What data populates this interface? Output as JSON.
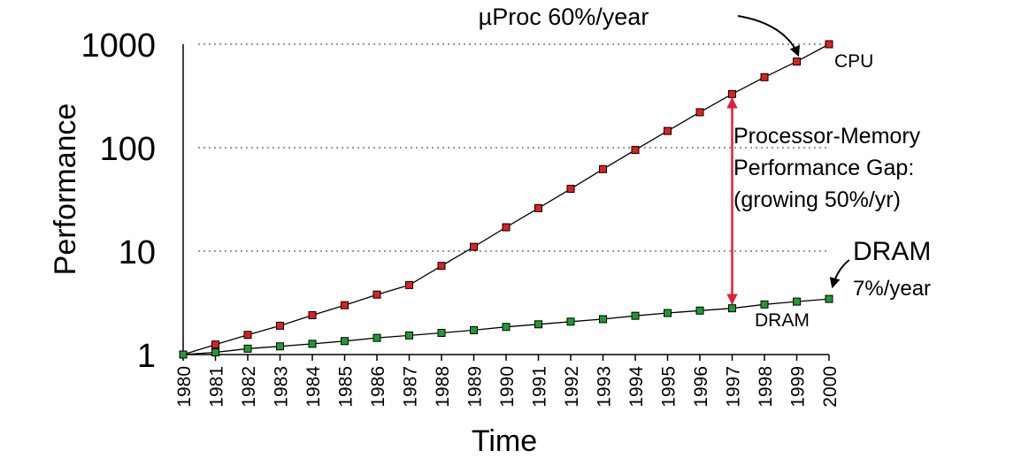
{
  "chart_data": {
    "type": "line",
    "title": "",
    "xlabel": "Time",
    "ylabel": "Performance",
    "y_scale": "log",
    "ylim": [
      1,
      1000
    ],
    "yticks": [
      {
        "value": 1,
        "label": "1"
      },
      {
        "value": 10,
        "label": "10"
      },
      {
        "value": 100,
        "label": "100"
      },
      {
        "value": 1000,
        "label": "1000"
      }
    ],
    "categories": [
      "1980",
      "1981",
      "1982",
      "1983",
      "1984",
      "1985",
      "1986",
      "1987",
      "1988",
      "1989",
      "1990",
      "1991",
      "1992",
      "1993",
      "1994",
      "1995",
      "1996",
      "1997",
      "1998",
      "1999",
      "2000"
    ],
    "grid": "horizontal dotted at 10, 100, 1000",
    "series": [
      {
        "name": "CPU",
        "color": "#e1201c",
        "values": [
          1,
          1.25,
          1.55,
          1.9,
          2.4,
          3.0,
          3.8,
          4.7,
          7.2,
          11,
          17,
          26,
          40,
          62,
          95,
          145,
          220,
          330,
          480,
          680,
          1000
        ]
      },
      {
        "name": "DRAM",
        "color": "#1f9b2e",
        "values": [
          1,
          1.05,
          1.14,
          1.2,
          1.27,
          1.35,
          1.45,
          1.53,
          1.62,
          1.72,
          1.85,
          1.96,
          2.08,
          2.2,
          2.37,
          2.52,
          2.66,
          2.8,
          3.05,
          3.25,
          3.45
        ]
      }
    ],
    "annotations": {
      "cpu_rate": "µProc 60%/year",
      "cpu_label": "CPU",
      "dram_heading": "DRAM",
      "dram_rate": "7%/year",
      "dram_label": "DRAM",
      "gap_lines": [
        "Processor-Memory",
        "Performance Gap:",
        "(growing 50%/yr)"
      ],
      "gap_year": "1997",
      "gap_color": "#e0203a"
    }
  }
}
